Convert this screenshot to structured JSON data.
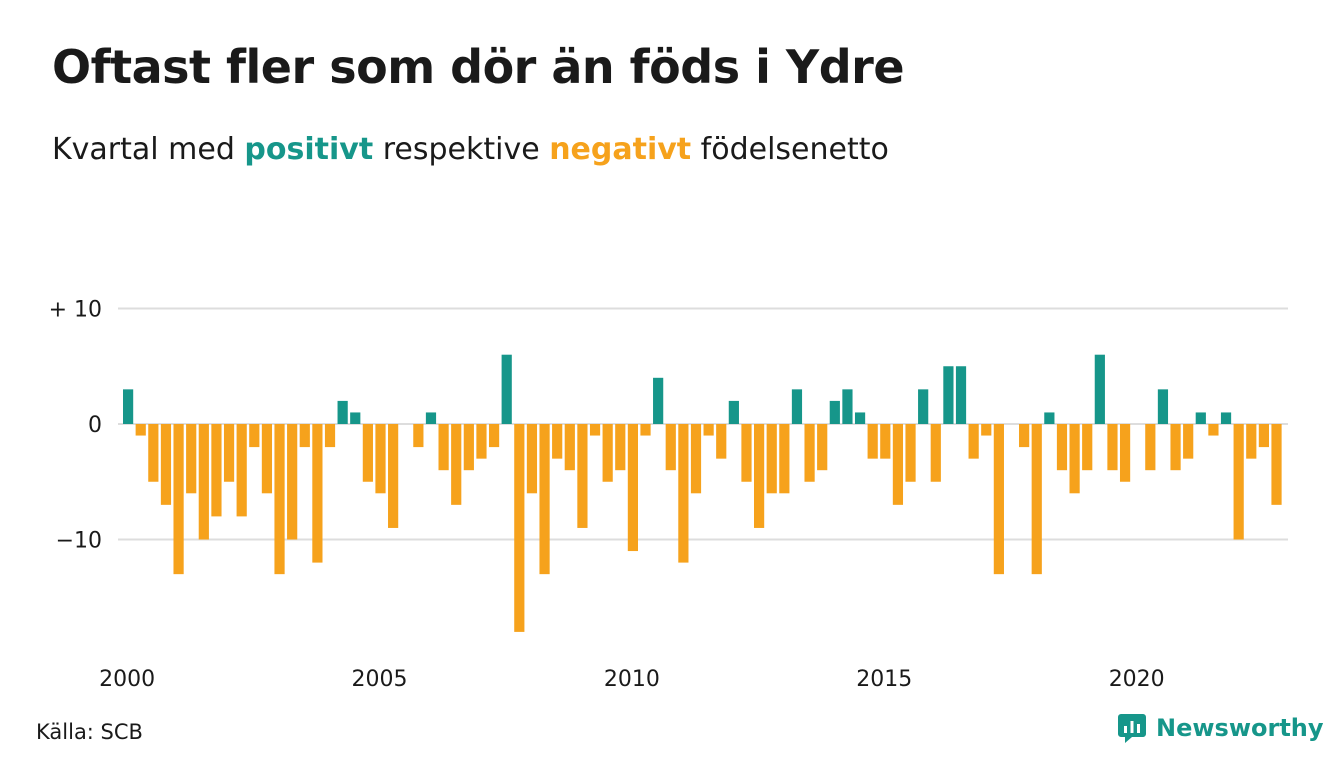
{
  "title": "Oftast fler som dör än föds i Ydre",
  "subtitle": {
    "prefix": "Kvartal med ",
    "positive_word": "positivt",
    "middle": " respektive ",
    "negative_word": "negativt",
    "suffix": " födelsenetto"
  },
  "source": "Källa: SCB",
  "brand": {
    "name": "Newsworthy",
    "logo_icon": "newsworthy-logo-icon"
  },
  "colors": {
    "positive": "#16968a",
    "negative": "#f6a21c",
    "grid": "#dddddd",
    "text": "#1a1a1a"
  },
  "chart_data": {
    "type": "bar",
    "title": "Oftast fler som dör än föds i Ydre",
    "subtitle": "Kvartal med positivt respektive negativt födelsenetto",
    "ylim": [
      -18,
      10
    ],
    "y_ticks": [
      10,
      0,
      -10
    ],
    "y_tick_labels": [
      "+ 10",
      "0",
      "−10"
    ],
    "x_start_year": 2000,
    "x_tick_labels": [
      "2000",
      "2005",
      "2010",
      "2015",
      "2020"
    ],
    "grid": true,
    "legend": "none",
    "series": [
      {
        "values": [
          3,
          -1,
          -5,
          -7,
          -13,
          -6,
          -10,
          -8,
          -5,
          -8,
          -2,
          -6,
          -13,
          -10,
          -2,
          -12,
          -2,
          2,
          1,
          -5,
          -6,
          -9,
          0,
          -2,
          1,
          -4,
          -7,
          -4,
          -3,
          -2,
          6,
          -18,
          -6,
          -13,
          -3,
          -4,
          -9,
          -1,
          -5,
          -4,
          -11,
          -1,
          4,
          -4,
          -12,
          -6,
          -1,
          -3,
          2,
          -5,
          -9,
          -6,
          -6,
          3,
          -5,
          -4,
          2,
          3,
          1,
          -3,
          -3,
          -7,
          -5,
          3,
          -5,
          5,
          5,
          -3,
          -1,
          -13,
          0,
          -2,
          -13,
          1,
          -4,
          -6,
          -4,
          6,
          -4,
          -5,
          0,
          -4,
          3,
          -4,
          -3,
          1,
          -1,
          1,
          -10,
          -3,
          -2,
          -7
        ]
      }
    ]
  }
}
